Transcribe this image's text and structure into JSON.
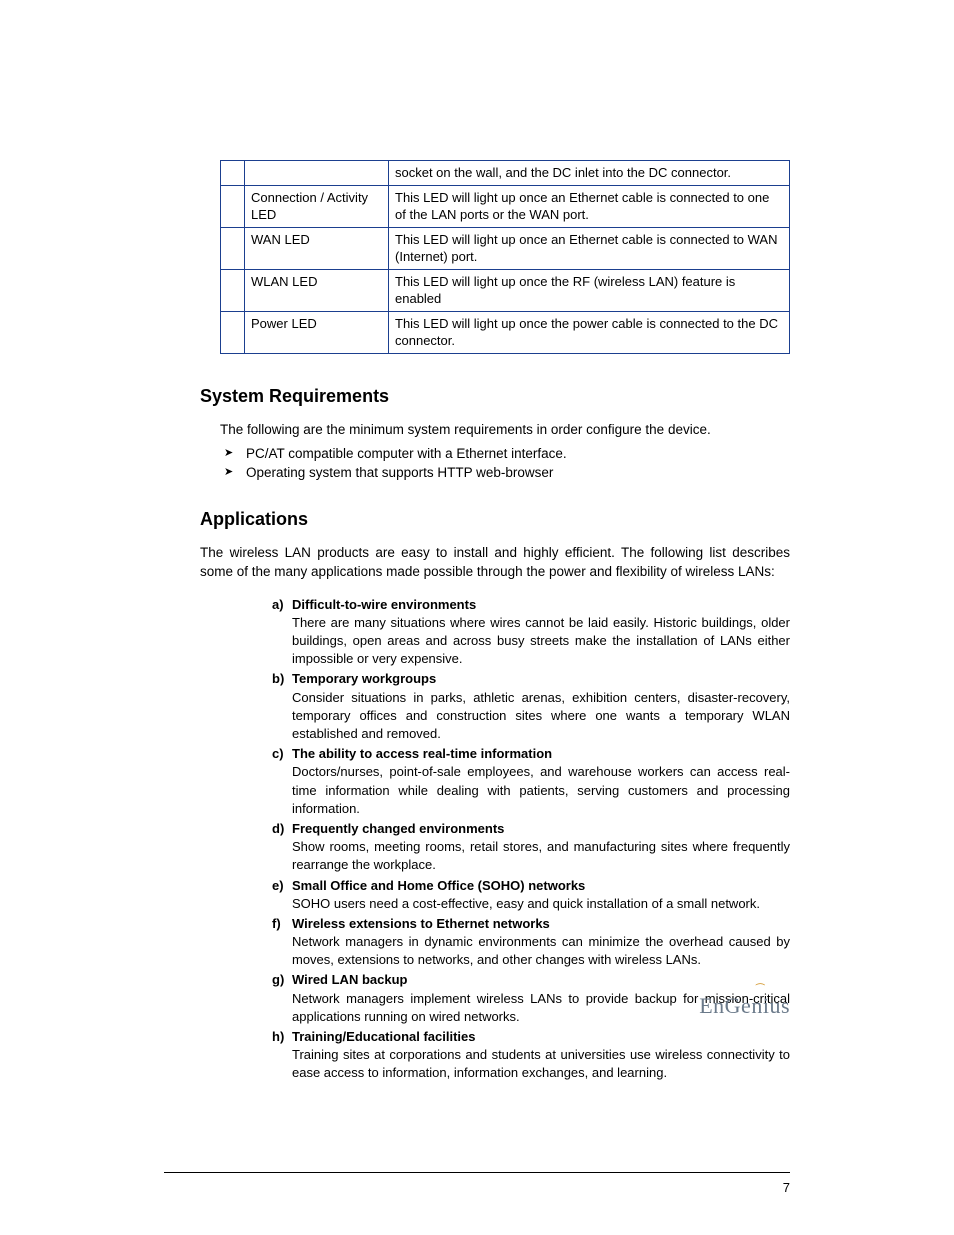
{
  "table": {
    "border_color": "#1b3f8f",
    "rows": [
      {
        "c1": "",
        "c2": "socket on the wall, and the DC inlet into the DC connector."
      },
      {
        "c1": "Connection / Activity LED",
        "c2": "This LED will light up once an Ethernet cable is connected to one of the LAN ports or the WAN port."
      },
      {
        "c1": "WAN LED",
        "c2": "This LED will light up once an Ethernet cable is connected to WAN (Internet) port."
      },
      {
        "c1": "WLAN LED",
        "c2": "This LED will light up once the RF (wireless LAN) feature is enabled"
      },
      {
        "c1": "Power LED",
        "c2": "This LED will light up once the power cable is connected to the DC connector."
      }
    ]
  },
  "sys_req": {
    "heading": "System Requirements",
    "intro": "The following are the minimum system requirements in order configure the device.",
    "items": [
      "PC/AT compatible computer with a Ethernet interface.",
      "Operating system that supports HTTP web-browser"
    ]
  },
  "apps": {
    "heading": "Applications",
    "intro": "The wireless LAN products are easy to install and highly efficient. The following list describes some of the many applications made possible through the power and flexibility of wireless LANs:",
    "items": [
      {
        "letter": "a)",
        "title": "Difficult-to-wire environments",
        "body": "There are many situations where wires cannot be laid easily. Historic buildings, older buildings, open areas and across busy streets make the installation of LANs either impossible or very expensive."
      },
      {
        "letter": "b)",
        "title": "Temporary workgroups",
        "body": "Consider situations in parks, athletic arenas, exhibition centers, disaster-recovery, temporary offices and construction sites where one wants a temporary WLAN established and removed."
      },
      {
        "letter": "c)",
        "title": "The ability to access real-time information",
        "body": "Doctors/nurses, point-of-sale employees, and warehouse workers can access real-time information while dealing with patients, serving customers and processing information."
      },
      {
        "letter": "d)",
        "title": "Frequently changed environments",
        "body": "Show rooms, meeting rooms, retail stores, and manufacturing sites where frequently rearrange the workplace."
      },
      {
        "letter": "e)",
        "title": "Small Office and Home Office (SOHO) networks",
        "body": "SOHO users need a cost-effective, easy and quick installation of a small network."
      },
      {
        "letter": "f)",
        "title": "Wireless extensions to Ethernet networks",
        "body": "Network managers in dynamic environments can minimize the overhead caused by moves, extensions to networks, and other changes with wireless LANs."
      },
      {
        "letter": "g)",
        "title": "Wired LAN backup",
        "body": "Network managers implement wireless LANs to provide backup for mission-critical applications running on wired networks."
      },
      {
        "letter": "h)",
        "title": "Training/Educational facilities",
        "body": "Training sites at corporations and students at universities use wireless connectivity to ease access to information, information exchanges, and learning."
      }
    ]
  },
  "footer": {
    "logo": "EnGenius",
    "page": "7"
  }
}
